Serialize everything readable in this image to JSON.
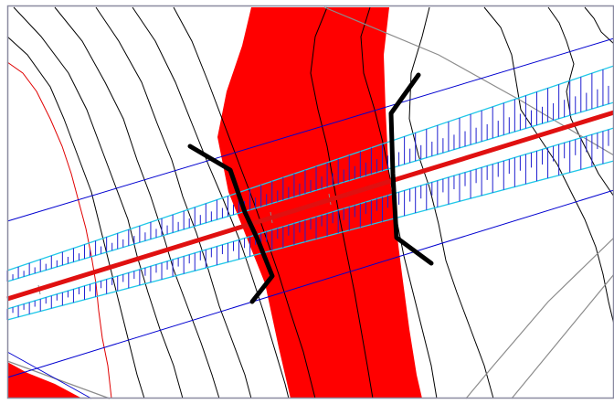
{
  "view": {
    "type": "cad-plan-view",
    "description_visible_text": "",
    "colors": {
      "background": "#ffffff",
      "frame": "#8a8aa0",
      "river": "#ff0000",
      "centerline": "#e01010",
      "contour": "#000000",
      "boundary_red": "#e00000",
      "offset_lines": "#0000d0",
      "slope_outline": "#20c8e8",
      "hachure": "#2020d0",
      "grey_lines": "#8c8c8c",
      "abutment": "#000000"
    },
    "layers": [
      "river-polygon",
      "contour-lines",
      "offset-lines",
      "embankment-slopes",
      "road-centerline",
      "bridge-abutments",
      "grey-reference-lines"
    ]
  }
}
